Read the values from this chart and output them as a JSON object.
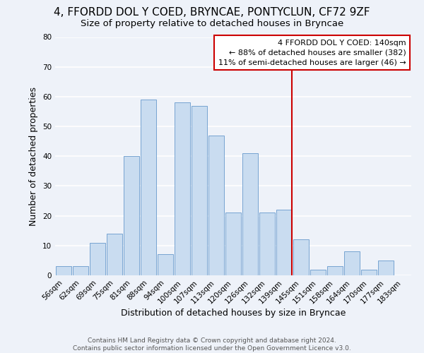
{
  "title": "4, FFORDD DOL Y COED, BRYNCAE, PONTYCLUN, CF72 9ZF",
  "subtitle": "Size of property relative to detached houses in Bryncae",
  "xlabel": "Distribution of detached houses by size in Bryncae",
  "ylabel": "Number of detached properties",
  "bar_labels": [
    "56sqm",
    "62sqm",
    "69sqm",
    "75sqm",
    "81sqm",
    "88sqm",
    "94sqm",
    "100sqm",
    "107sqm",
    "113sqm",
    "120sqm",
    "126sqm",
    "132sqm",
    "139sqm",
    "145sqm",
    "151sqm",
    "158sqm",
    "164sqm",
    "170sqm",
    "177sqm",
    "183sqm"
  ],
  "bar_heights": [
    3,
    3,
    11,
    14,
    40,
    59,
    7,
    58,
    57,
    47,
    21,
    41,
    21,
    22,
    12,
    2,
    3,
    8,
    2,
    5,
    0
  ],
  "bar_color": "#c9dcf0",
  "bar_edge_color": "#6699cc",
  "ylim": [
    0,
    80
  ],
  "yticks": [
    0,
    10,
    20,
    30,
    40,
    50,
    60,
    70,
    80
  ],
  "vline_x_label": "139sqm",
  "vline_color": "#cc0000",
  "annotation_title": "4 FFORDD DOL Y COED: 140sqm",
  "annotation_line1": "← 88% of detached houses are smaller (382)",
  "annotation_line2": "11% of semi-detached houses are larger (46) →",
  "annotation_box_color": "#ffffff",
  "annotation_box_edge": "#cc0000",
  "footer_line1": "Contains HM Land Registry data © Crown copyright and database right 2024.",
  "footer_line2": "Contains public sector information licensed under the Open Government Licence v3.0.",
  "background_color": "#eef2f9",
  "grid_color": "#ffffff",
  "title_fontsize": 11,
  "subtitle_fontsize": 9.5,
  "axis_label_fontsize": 9,
  "tick_fontsize": 7.5,
  "footer_fontsize": 6.5,
  "annotation_fontsize": 8
}
